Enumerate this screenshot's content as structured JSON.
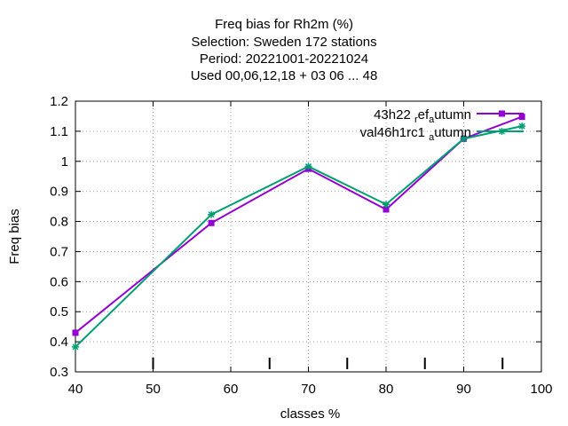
{
  "title_lines": [
    "Freq bias  for Rh2m (%)",
    "Selection: Sweden     172 stations",
    "Period: 20221001-20221024",
    "Used  00,06,12,18  + 03 06 ... 48"
  ],
  "chart_data": {
    "type": "line",
    "xlabel": "classes %",
    "ylabel": "Freq bias",
    "xlim": [
      40,
      100
    ],
    "ylim": [
      0.3,
      1.2
    ],
    "x_ticks": [
      40,
      50,
      60,
      70,
      80,
      90,
      100
    ],
    "y_ticks": [
      0.3,
      0.4,
      0.5,
      0.6,
      0.7,
      0.8,
      0.9,
      1,
      1.1,
      1.2
    ],
    "y_tick_labels": [
      "0.3",
      "0.4",
      "0.5",
      "0.6",
      "0.7",
      "0.8",
      "0.9",
      "1",
      "1.1",
      "1.2"
    ],
    "grid": true,
    "legend_position": "top-right",
    "minor_ticks_bottom": [
      50,
      65,
      75,
      85,
      95
    ],
    "series": [
      {
        "name": "43h22_ref_autumn",
        "legend_main": "43h22",
        "legend_parts": [
          " ",
          "r",
          "ef",
          "a",
          "utumn"
        ],
        "color": "#9400d3",
        "marker": "square",
        "x": [
          40,
          57.5,
          70,
          80,
          90,
          97.5
        ],
        "y": [
          0.43,
          0.795,
          0.975,
          0.84,
          1.075,
          1.148
        ]
      },
      {
        "name": "val46h1rc1_autumn",
        "legend_main": "val46h1rc1",
        "legend_parts": [
          " ",
          "a",
          "utumn"
        ],
        "color": "#009e73",
        "marker": "star",
        "x": [
          40,
          57.5,
          70,
          80,
          90,
          97.5
        ],
        "y": [
          0.383,
          0.823,
          0.983,
          0.857,
          1.075,
          1.117
        ]
      }
    ]
  }
}
